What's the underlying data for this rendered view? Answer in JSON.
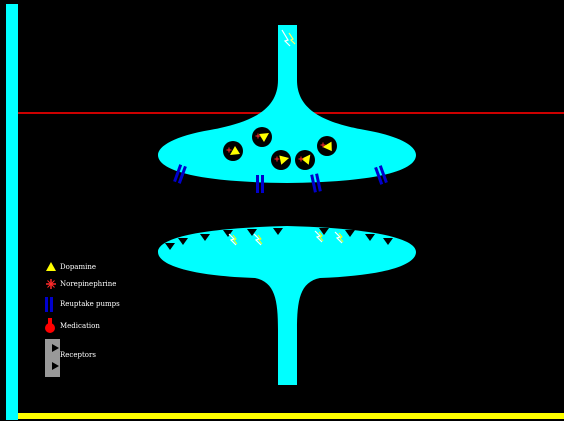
{
  "colors": {
    "background": "#000000",
    "neuron": "#00ffff",
    "border_left": "#00ffff",
    "border_bottom": "#ffff00",
    "membrane_line": "#cc0000",
    "vesicle": "#000000",
    "dopamine": "#ffff00",
    "norepinephrine": "#ff2a2a",
    "reuptake_pump": "#0000cc",
    "medication": "#ff0000",
    "receptor": "#999999"
  },
  "legend": {
    "dopamine": "Dopamine",
    "norepinephrine": "Norepinephrine",
    "reuptake_pumps": "Reuptake pumps",
    "medication": "Medication",
    "receptors": "Receptors"
  },
  "icons": {
    "dopamine": "triangle-icon",
    "norepinephrine": "star-icon",
    "reuptake_pumps": "double-bar-icon",
    "medication": "flask-icon",
    "receptors": "receptor-icon"
  }
}
